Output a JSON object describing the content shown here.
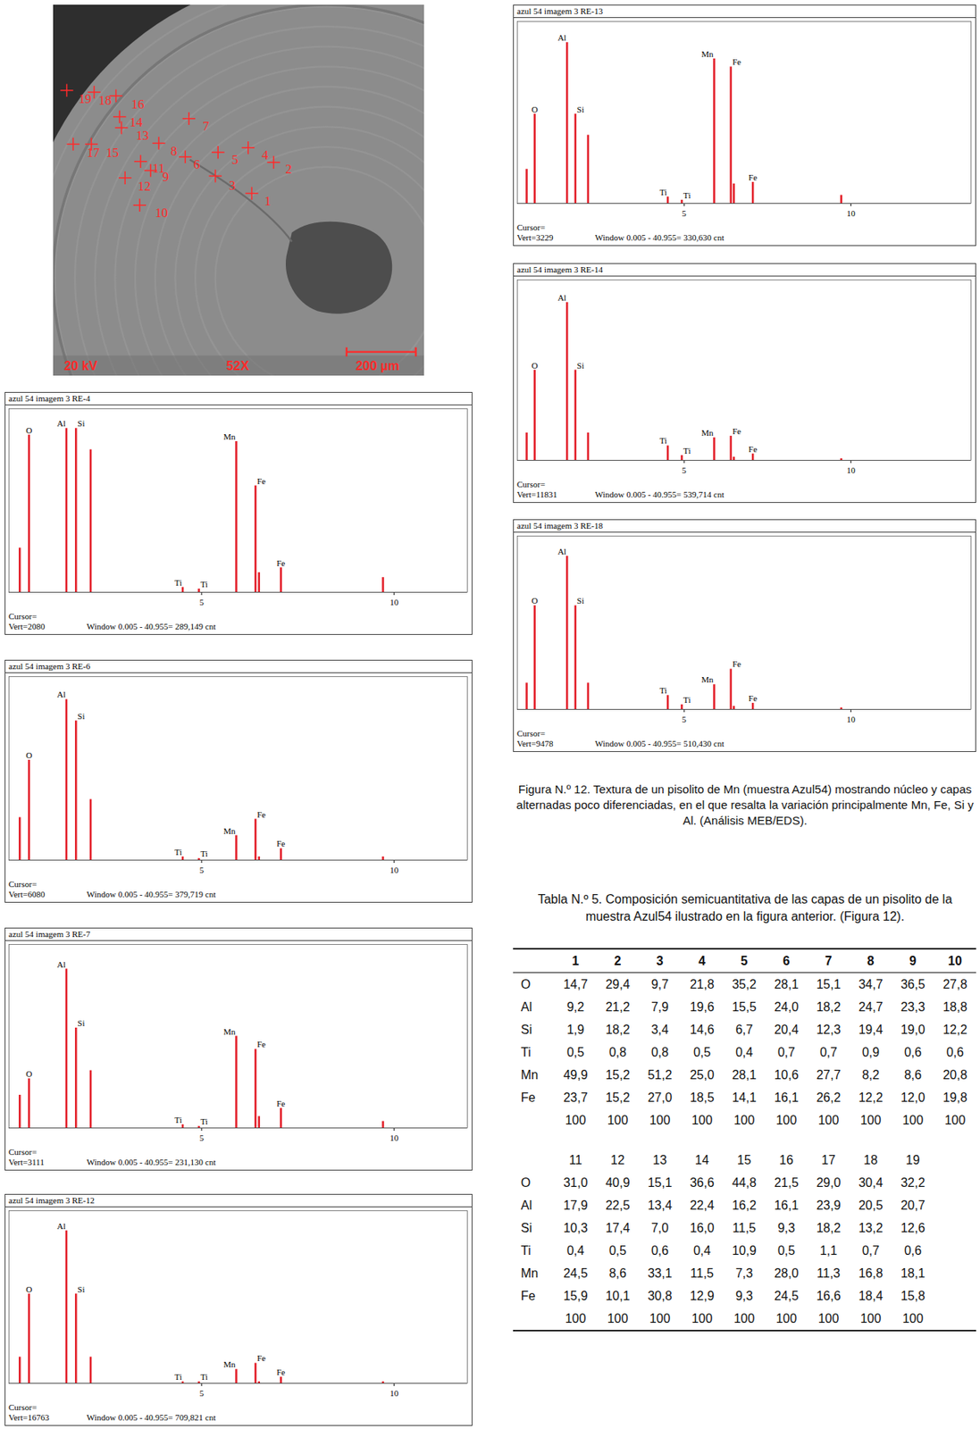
{
  "sem_image": {
    "markers": [
      "1",
      "2",
      "3",
      "4",
      "5",
      "6",
      "7",
      "8",
      "9",
      "10",
      "11",
      "12",
      "13",
      "14",
      "15",
      "16",
      "17",
      "18",
      "19"
    ],
    "voltage": "20 kV",
    "magnification": "52X",
    "scale_bar": "200 µm"
  },
  "chart_data": [
    {
      "type": "spectrum",
      "title": "azul 54 imagem 3 RE-4",
      "x": [
        0.28,
        0.52,
        1.49,
        1.74,
        2.12,
        4.51,
        4.93,
        5.9,
        6.4,
        6.49,
        7.06,
        9.71
      ],
      "values": [
        27,
        96,
        100,
        100,
        87,
        3,
        2,
        92,
        65,
        12,
        15,
        9
      ],
      "annotations": [
        null,
        "O",
        "Al",
        "Si",
        null,
        "Ti",
        "Ti",
        "Mn",
        "Fe",
        null,
        "Fe",
        null
      ],
      "xlim": [
        0,
        11.9
      ],
      "xticks": [
        5,
        10
      ],
      "ylim": [
        0,
        112
      ],
      "tick_labels": "x",
      "color": "#e3202a",
      "cursor": "Cursor=",
      "vert": "Vert=2080",
      "window": "Window 0.005 - 40.955=  289,149 cnt"
    },
    {
      "type": "spectrum",
      "title": "azul 54 imagem 3 RE-6",
      "x": [
        0.28,
        0.52,
        1.49,
        1.74,
        2.12,
        4.51,
        4.93,
        5.9,
        6.4,
        6.49,
        7.06,
        9.71
      ],
      "values": [
        26,
        61,
        98,
        85,
        37,
        2,
        1,
        15,
        25,
        2,
        7,
        2
      ],
      "annotations": [
        null,
        "O",
        "Al",
        "Si",
        null,
        "Ti",
        "Ti",
        "Mn",
        "Fe",
        null,
        "Fe",
        null
      ],
      "xlim": [
        0,
        11.9
      ],
      "xticks": [
        5,
        10
      ],
      "ylim": [
        0,
        112
      ],
      "tick_labels": "x",
      "color": "#e3202a",
      "cursor": "Cursor=",
      "vert": "Vert=6080",
      "window": "Window 0.005 - 40.955=  379,719 cnt"
    },
    {
      "type": "spectrum",
      "title": "azul 54 imagem 3 RE-7",
      "x": [
        0.28,
        0.52,
        1.49,
        1.74,
        2.12,
        4.51,
        4.93,
        5.9,
        6.4,
        6.49,
        7.06,
        9.71
      ],
      "values": [
        20,
        30,
        97,
        61,
        35,
        2,
        1,
        56,
        48,
        7,
        12,
        4
      ],
      "annotations": [
        null,
        "O",
        "Al",
        "Si",
        null,
        "Ti",
        "Ti",
        "Mn",
        "Fe",
        null,
        "Fe",
        null
      ],
      "xlim": [
        0,
        11.9
      ],
      "xticks": [
        5,
        10
      ],
      "ylim": [
        0,
        112
      ],
      "tick_labels": "x",
      "color": "#e3202a",
      "cursor": "Cursor=",
      "vert": "Vert=3111",
      "window": "Window 0.005 - 40.955=  231,130 cnt"
    },
    {
      "type": "spectrum",
      "title": "azul 54 imagem 3 RE-12",
      "x": [
        0.28,
        0.52,
        1.49,
        1.74,
        2.12,
        4.51,
        4.93,
        5.9,
        6.4,
        6.49,
        7.06,
        9.71
      ],
      "values": [
        17,
        58,
        99,
        58,
        17,
        1,
        1,
        9,
        13,
        1,
        4,
        1
      ],
      "annotations": [
        null,
        "O",
        "Al",
        "Si",
        null,
        "Ti",
        "Ti",
        "Mn",
        "Fe",
        null,
        "Fe",
        null
      ],
      "xlim": [
        0,
        11.9
      ],
      "xticks": [
        5,
        10
      ],
      "ylim": [
        0,
        112
      ],
      "tick_labels": "x",
      "color": "#e3202a",
      "cursor": "Cursor=",
      "vert": "Vert=16763",
      "window": "Window 0.005 - 40.955=  709,821 cnt"
    },
    {
      "type": "spectrum",
      "title": "azul 54 imagem 3 RE-13",
      "x": [
        0.28,
        0.52,
        1.49,
        1.74,
        2.12,
        4.51,
        4.93,
        5.9,
        6.4,
        6.49,
        7.06,
        9.71
      ],
      "values": [
        21,
        55,
        99,
        55,
        42,
        4,
        2,
        89,
        84,
        12,
        13,
        5
      ],
      "annotations": [
        null,
        "O",
        "Al",
        "Si",
        null,
        "Ti",
        "Ti",
        "Mn",
        "Fe",
        null,
        "Fe",
        null
      ],
      "xlim": [
        0,
        13.6
      ],
      "xticks": [
        5,
        10
      ],
      "ylim": [
        0,
        112
      ],
      "tick_labels": "x",
      "color": "#e3202a",
      "cursor": "Cursor=",
      "vert": "Vert=3229",
      "window": "Window 0.005 - 40.955=  330,630 cnt"
    },
    {
      "type": "spectrum",
      "title": "azul 54 imagem 3 RE-14",
      "x": [
        0.28,
        0.52,
        1.49,
        1.74,
        2.12,
        4.51,
        4.93,
        5.9,
        6.4,
        6.49,
        7.06,
        9.71
      ],
      "values": [
        17,
        56,
        98,
        56,
        17,
        9,
        3,
        14,
        15,
        2,
        4,
        1
      ],
      "annotations": [
        null,
        "O",
        "Al",
        "Si",
        null,
        "Ti",
        "Ti",
        "Mn",
        "Fe",
        null,
        "Fe",
        null
      ],
      "xlim": [
        0,
        13.6
      ],
      "xticks": [
        5,
        10
      ],
      "ylim": [
        0,
        112
      ],
      "tick_labels": "x",
      "color": "#e3202a",
      "cursor": "Cursor=",
      "vert": "Vert=11831",
      "window": "Window 0.005 - 40.955=  539,714 cnt"
    },
    {
      "type": "spectrum",
      "title": "azul 54 imagem 3 RE-18",
      "x": [
        0.28,
        0.52,
        1.49,
        1.74,
        2.12,
        4.51,
        4.93,
        5.9,
        6.4,
        6.49,
        7.06,
        9.71
      ],
      "values": [
        17,
        67,
        99,
        67,
        17,
        9,
        3,
        16,
        26,
        2,
        4,
        1
      ],
      "annotations": [
        null,
        "O",
        "Al",
        "Si",
        null,
        "Ti",
        "Ti",
        "Mn",
        "Fe",
        null,
        "Fe",
        null
      ],
      "xlim": [
        0,
        13.6
      ],
      "xticks": [
        5,
        10
      ],
      "ylim": [
        0,
        112
      ],
      "tick_labels": "x",
      "color": "#e3202a",
      "cursor": "Cursor=",
      "vert": "Vert=9478",
      "window": "Window 0.005 - 40.955=  510,430 cnt"
    }
  ],
  "caption": "Figura N.º 12. Textura de un pisolito de Mn (muestra Azul54) mostrando núcleo y capas alternadas poco diferenciadas, en el que resalta la variación principalmente Mn, Fe, Si y Al. (Análisis MEB/EDS).",
  "table": {
    "title": "Tabla N.º 5. Composición semicuantitativa de las capas de un pisolito de la muestra Azul54 ilustrado en la figura anterior. (Figura 12).",
    "blocks": [
      {
        "header": [
          "1",
          "2",
          "3",
          "4",
          "5",
          "6",
          "7",
          "8",
          "9",
          "10"
        ],
        "rows": [
          [
            "O",
            "14,7",
            "29,4",
            "9,7",
            "21,8",
            "35,2",
            "28,1",
            "15,1",
            "34,7",
            "36,5",
            "27,8"
          ],
          [
            "Al",
            "9,2",
            "21,2",
            "7,9",
            "19,6",
            "15,5",
            "24,0",
            "18,2",
            "24,7",
            "23,3",
            "18,8"
          ],
          [
            "Si",
            "1,9",
            "18,2",
            "3,4",
            "14,6",
            "6,7",
            "20,4",
            "12,3",
            "19,4",
            "19,0",
            "12,2"
          ],
          [
            "Ti",
            "0,5",
            "0,8",
            "0,8",
            "0,5",
            "0,4",
            "0,7",
            "0,7",
            "0,9",
            "0,6",
            "0,6"
          ],
          [
            "Mn",
            "49,9",
            "15,2",
            "51,2",
            "25,0",
            "28,1",
            "10,6",
            "27,7",
            "8,2",
            "8,6",
            "20,8"
          ],
          [
            "Fe",
            "23,7",
            "15,2",
            "27,0",
            "18,5",
            "14,1",
            "16,1",
            "26,2",
            "12,2",
            "12,0",
            "19,8"
          ],
          [
            null,
            "100",
            "100",
            "100",
            "100",
            "100",
            "100",
            "100",
            "100",
            "100",
            "100"
          ]
        ]
      },
      {
        "header": [
          "11",
          "12",
          "13",
          "14",
          "15",
          "16",
          "17",
          "18",
          "19"
        ],
        "rows": [
          [
            "O",
            "31,0",
            "40,9",
            "15,1",
            "36,6",
            "44,8",
            "21,5",
            "29,0",
            "30,4",
            "32,2"
          ],
          [
            "Al",
            "17,9",
            "22,5",
            "13,4",
            "22,4",
            "16,2",
            "16,1",
            "23,9",
            "20,5",
            "20,7"
          ],
          [
            "Si",
            "10,3",
            "17,4",
            "7,0",
            "16,0",
            "11,5",
            "9,3",
            "18,2",
            "13,2",
            "12,6"
          ],
          [
            "Ti",
            "0,4",
            "0,5",
            "0,6",
            "0,4",
            "10,9",
            "0,5",
            "1,1",
            "0,7",
            "0,6"
          ],
          [
            "Mn",
            "24,5",
            "8,6",
            "33,1",
            "11,5",
            "7,3",
            "28,0",
            "11,3",
            "16,8",
            "18,1"
          ],
          [
            "Fe",
            "15,9",
            "10,1",
            "30,8",
            "12,9",
            "9,3",
            "24,5",
            "16,6",
            "18,4",
            "15,8"
          ],
          [
            null,
            "100",
            "100",
            "100",
            "100",
            "100",
            "100",
            "100",
            "100",
            "100"
          ]
        ]
      }
    ]
  }
}
